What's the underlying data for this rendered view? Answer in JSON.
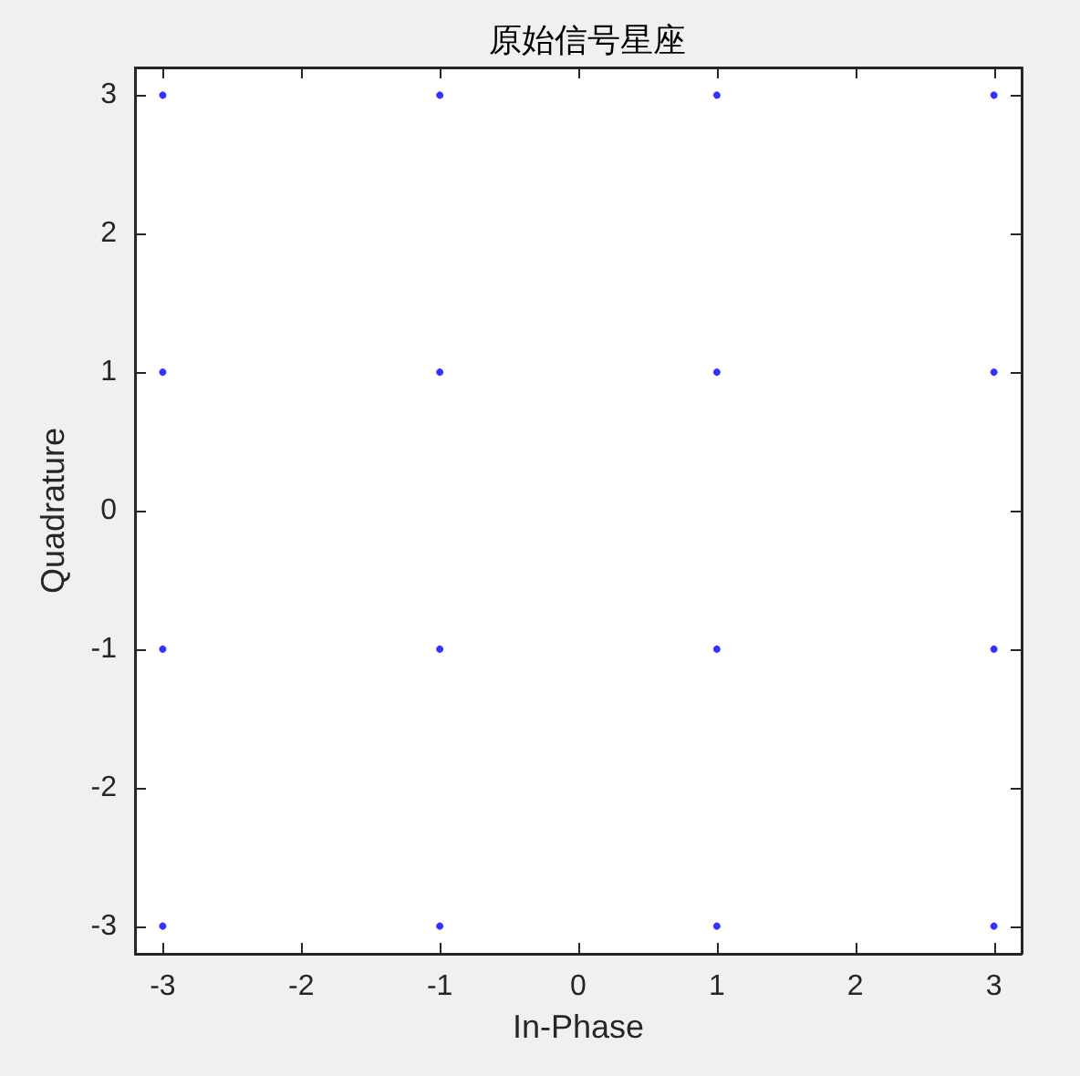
{
  "chart_data": {
    "type": "scatter",
    "title": "原始信号星座",
    "xlabel": "In-Phase",
    "ylabel": "Quadrature",
    "x": [
      -3,
      -3,
      -3,
      -3,
      -1,
      -1,
      -1,
      -1,
      1,
      1,
      1,
      1,
      3,
      3,
      3,
      3
    ],
    "values": [
      3,
      1,
      -1,
      -3,
      3,
      1,
      -1,
      -3,
      3,
      1,
      -1,
      -3,
      3,
      1,
      -1,
      -3
    ],
    "color": "#0000ff",
    "marker": "circle",
    "xlim": [
      -3.2,
      3.2
    ],
    "ylim": [
      -3.2,
      3.2
    ],
    "xticks": [
      -3,
      -2,
      -1,
      0,
      1,
      2,
      3
    ],
    "yticks": [
      -3,
      -2,
      -1,
      0,
      1,
      2,
      3
    ],
    "grid": false
  }
}
